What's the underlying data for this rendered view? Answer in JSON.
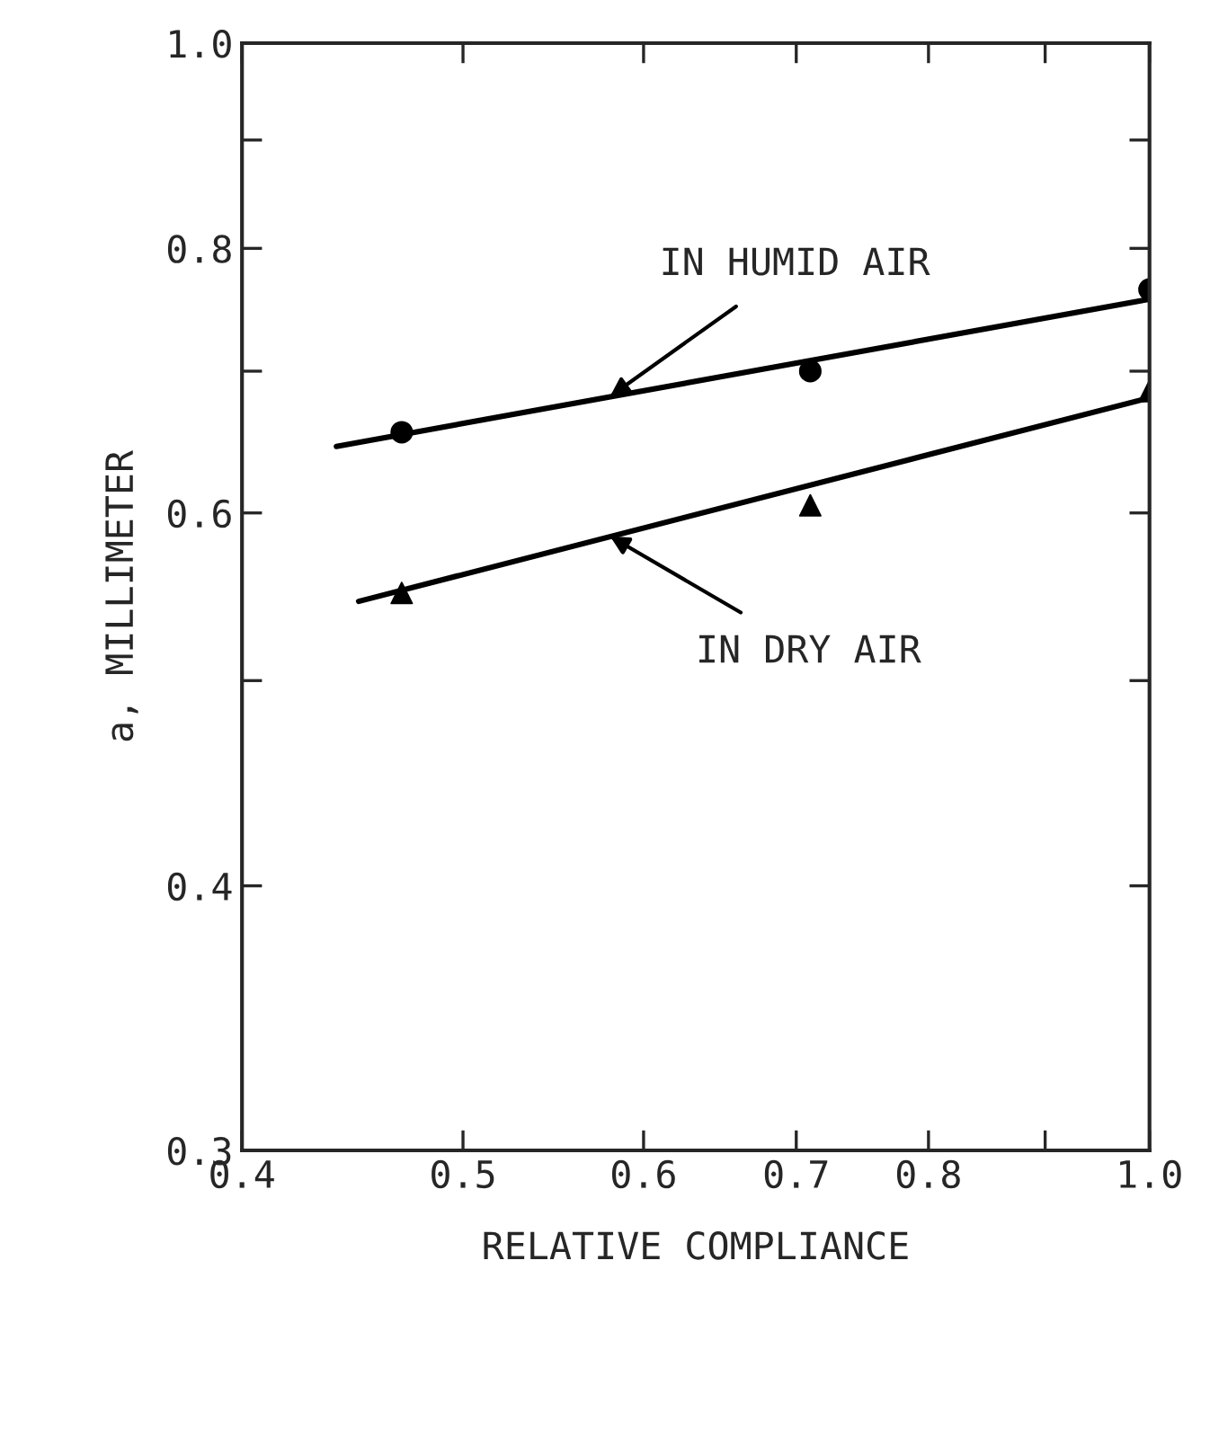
{
  "chart_data": {
    "type": "scatter",
    "xlabel": "RELATIVE COMPLIANCE",
    "ylabel": "a, MILLIMETER",
    "log": "xy",
    "xlim": [
      0.4,
      1.0
    ],
    "ylim": [
      0.3,
      1.0
    ],
    "xticks": [
      0.4,
      0.5,
      0.6,
      0.7,
      0.8,
      {
        "value": 0.9,
        "label": null
      },
      {
        "value": 1.0,
        "label": "1.0"
      }
    ],
    "yticks": [
      0.3,
      0.4,
      {
        "value": 0.5,
        "label": null
      },
      0.6,
      {
        "value": 0.7,
        "label": null
      },
      0.8,
      {
        "value": 0.9,
        "label": null
      },
      {
        "value": 1.0,
        "label": "1.0"
      }
    ],
    "grid": false,
    "legend": false,
    "series": [
      {
        "marker": "circle",
        "color": "#000000",
        "x": [
          0.47,
          0.71,
          1.0
        ],
        "values": [
          0.655,
          0.7,
          0.765
        ]
      },
      {
        "marker": "triangle",
        "color": "#000000",
        "x": [
          0.47,
          0.71,
          1.0
        ],
        "values": [
          0.55,
          0.605,
          0.685
        ]
      },
      {
        "type": "line",
        "marker": "none",
        "color": "#000000",
        "x": [
          0.44,
          1.0
        ],
        "values": [
          0.645,
          0.757
        ]
      },
      {
        "type": "line",
        "marker": "none",
        "color": "#000000",
        "x": [
          0.45,
          1.0
        ],
        "values": [
          0.545,
          0.68
        ]
      }
    ],
    "annotations": [
      {
        "text": "IN HUMID AIR",
        "x": 0.58,
        "y": 0.681
      },
      {
        "text": "IN DRY AIR",
        "x": 0.58,
        "y": 0.585
      }
    ]
  }
}
